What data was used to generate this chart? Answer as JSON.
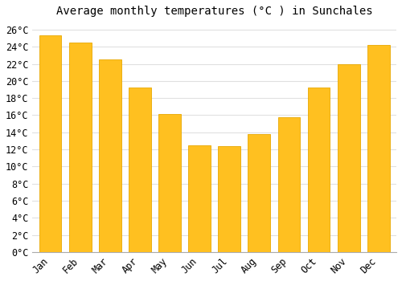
{
  "title": "Average monthly temperatures (°C ) in Sunchales",
  "months": [
    "Jan",
    "Feb",
    "Mar",
    "Apr",
    "May",
    "Jun",
    "Jul",
    "Aug",
    "Sep",
    "Oct",
    "Nov",
    "Dec"
  ],
  "values": [
    25.3,
    24.5,
    22.5,
    19.2,
    16.1,
    12.5,
    12.4,
    13.8,
    15.8,
    19.2,
    22.0,
    24.2
  ],
  "bar_color": "#FFC020",
  "bar_edge_color": "#E8A800",
  "background_color": "#ffffff",
  "plot_bg_color": "#ffffff",
  "grid_color": "#e0e0e0",
  "ylim": [
    0,
    27
  ],
  "yticks": [
    0,
    2,
    4,
    6,
    8,
    10,
    12,
    14,
    16,
    18,
    20,
    22,
    24,
    26
  ],
  "title_fontsize": 10,
  "tick_fontsize": 8.5,
  "tick_font": "monospace",
  "bar_width": 0.75
}
